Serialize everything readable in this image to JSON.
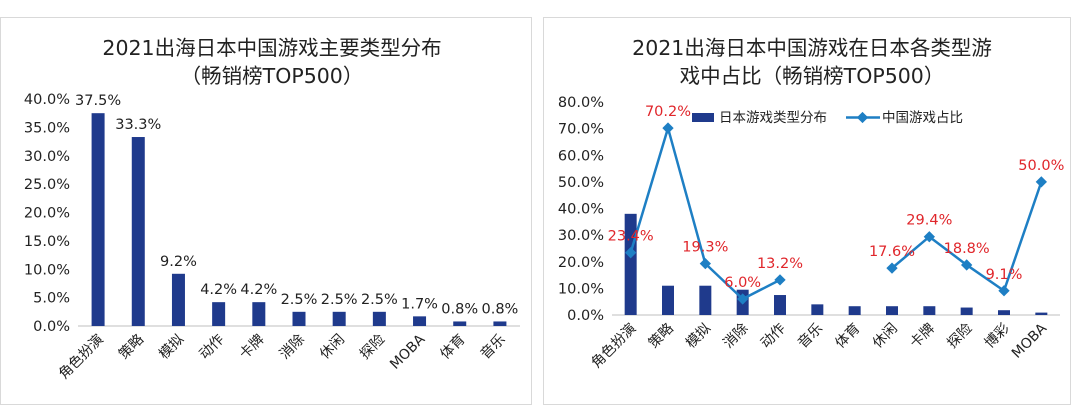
{
  "colors": {
    "bar": "#1F3A8C",
    "line": "#1E7FC4",
    "point_label": "#E0262B",
    "text": "#222222",
    "frame": "#D9D9D9",
    "axis": "#BFBFBF"
  },
  "chart_data": [
    {
      "type": "bar",
      "title_lines": [
        "2021出海日本中国游戏主要类型分布",
        "（畅销榜TOP500）"
      ],
      "categories": [
        "角色扮演",
        "策略",
        "模拟",
        "动作",
        "卡牌",
        "消除",
        "休闲",
        "探险",
        "MOBA",
        "体育",
        "音乐"
      ],
      "values": [
        37.5,
        33.3,
        9.2,
        4.2,
        4.2,
        2.5,
        2.5,
        2.5,
        1.7,
        0.8,
        0.8
      ],
      "value_labels": [
        "37.5%",
        "33.3%",
        "9.2%",
        "4.2%",
        "4.2%",
        "2.5%",
        "2.5%",
        "2.5%",
        "1.7%",
        "0.8%",
        "0.8%"
      ],
      "ylim": [
        0,
        40
      ],
      "yticks": [
        "0.0%",
        "5.0%",
        "10.0%",
        "15.0%",
        "20.0%",
        "25.0%",
        "30.0%",
        "35.0%",
        "40.0%"
      ],
      "xlabel": "",
      "ylabel": ""
    },
    {
      "type": "bar+line",
      "title_lines": [
        "2021出海日本中国游戏在日本各类型游",
        "戏中占比（畅销榜TOP500）"
      ],
      "categories": [
        "角色扮演",
        "策略",
        "模拟",
        "消除",
        "动作",
        "音乐",
        "体育",
        "休闲",
        "卡牌",
        "探险",
        "博彩",
        "MOBA"
      ],
      "series": [
        {
          "name": "日本游戏类型分布",
          "kind": "bar",
          "values": [
            38.0,
            11.0,
            11.0,
            9.5,
            7.5,
            4.0,
            3.3,
            3.3,
            3.3,
            2.8,
            1.8,
            0.9
          ]
        },
        {
          "name": "中国游戏占比",
          "kind": "line",
          "values": [
            23.4,
            70.2,
            19.3,
            6.0,
            13.2,
            null,
            null,
            17.6,
            29.4,
            18.8,
            9.1,
            50.0
          ],
          "value_labels": [
            "23.4%",
            "70.2%",
            "19.3%",
            "6.0%",
            "13.2%",
            "",
            "",
            "17.6%",
            "29.4%",
            "18.8%",
            "9.1%",
            "50.0%"
          ]
        }
      ],
      "ylim": [
        0,
        80
      ],
      "yticks": [
        "0.0%",
        "10.0%",
        "20.0%",
        "30.0%",
        "40.0%",
        "50.0%",
        "60.0%",
        "70.0%",
        "80.0%"
      ],
      "legend_position": "top-center",
      "xlabel": "",
      "ylabel": ""
    }
  ]
}
